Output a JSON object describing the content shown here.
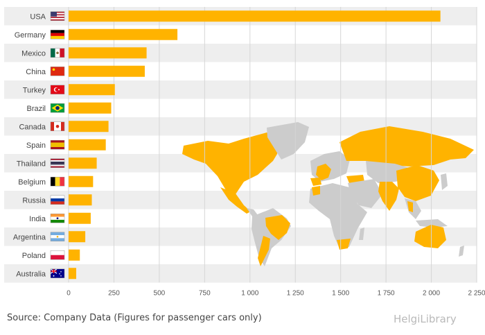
{
  "chart_data": {
    "type": "bar",
    "orientation": "horizontal",
    "categories": [
      "USA",
      "Germany",
      "Mexico",
      "China",
      "Turkey",
      "Brazil",
      "Canada",
      "Spain",
      "Thailand",
      "Belgium",
      "Russia",
      "India",
      "Argentina",
      "Poland",
      "Australia"
    ],
    "values": [
      2050,
      600,
      430,
      420,
      255,
      235,
      220,
      205,
      155,
      135,
      128,
      122,
      92,
      62,
      42
    ],
    "xlim": [
      0,
      2250
    ],
    "xticks": [
      0,
      250,
      500,
      750,
      1000,
      1250,
      1500,
      1750,
      2000,
      2250
    ],
    "xtick_labels": [
      "0",
      "250",
      "500",
      "750",
      "1 000",
      "1 250",
      "1 500",
      "1 750",
      "2 000",
      "2 250"
    ],
    "bar_color": "#ffb300",
    "row_band_color": "#eeeeee",
    "map_highlight_color": "#ffb300",
    "map_base_color": "#cccccc",
    "grid": true,
    "legend": "none"
  },
  "footer": {
    "source": "Source: Company Data (Figures for passenger cars only)",
    "brand": "HelgiLibrary"
  }
}
